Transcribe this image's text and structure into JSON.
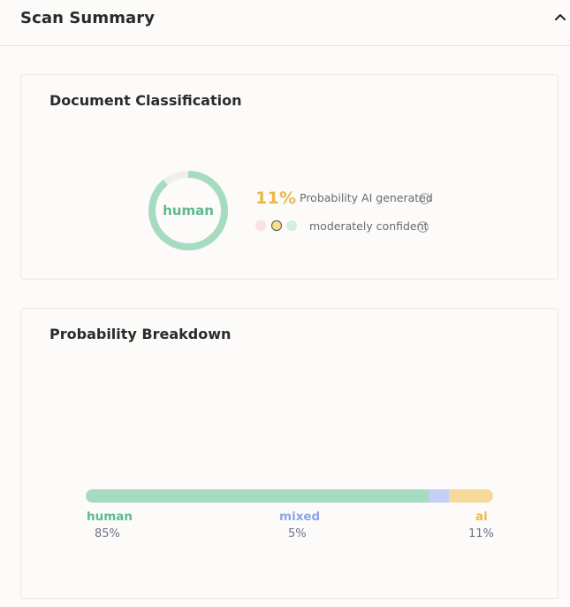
{
  "header": {
    "title": "Scan Summary",
    "collapse_icon": "chevron-up-icon"
  },
  "classification": {
    "title": "Document Classification",
    "donut_label": "human",
    "ai_fraction": 0.11,
    "ai_percent": "11%",
    "probability_label": "Probability AI generated",
    "confidence_label": "moderately confident",
    "confidence_level": "moderate",
    "colors": {
      "human": "#5cbb8d",
      "ai": "#eab84a",
      "ring": "#a6dbbf",
      "ring_track": "#eeeeee"
    }
  },
  "breakdown": {
    "title": "Probability Breakdown",
    "segments": [
      {
        "name": "human",
        "percent": "85%",
        "value": 85,
        "color": "#a6dbbf",
        "label_color": "#5cbb8d"
      },
      {
        "name": "mixed",
        "percent": "5%",
        "value": 5,
        "color": "#c5cff4",
        "label_color": "#8ea4e8"
      },
      {
        "name": "ai",
        "percent": "11%",
        "value": 11,
        "color": "#f6d99b",
        "label_color": "#eab84a"
      }
    ]
  }
}
